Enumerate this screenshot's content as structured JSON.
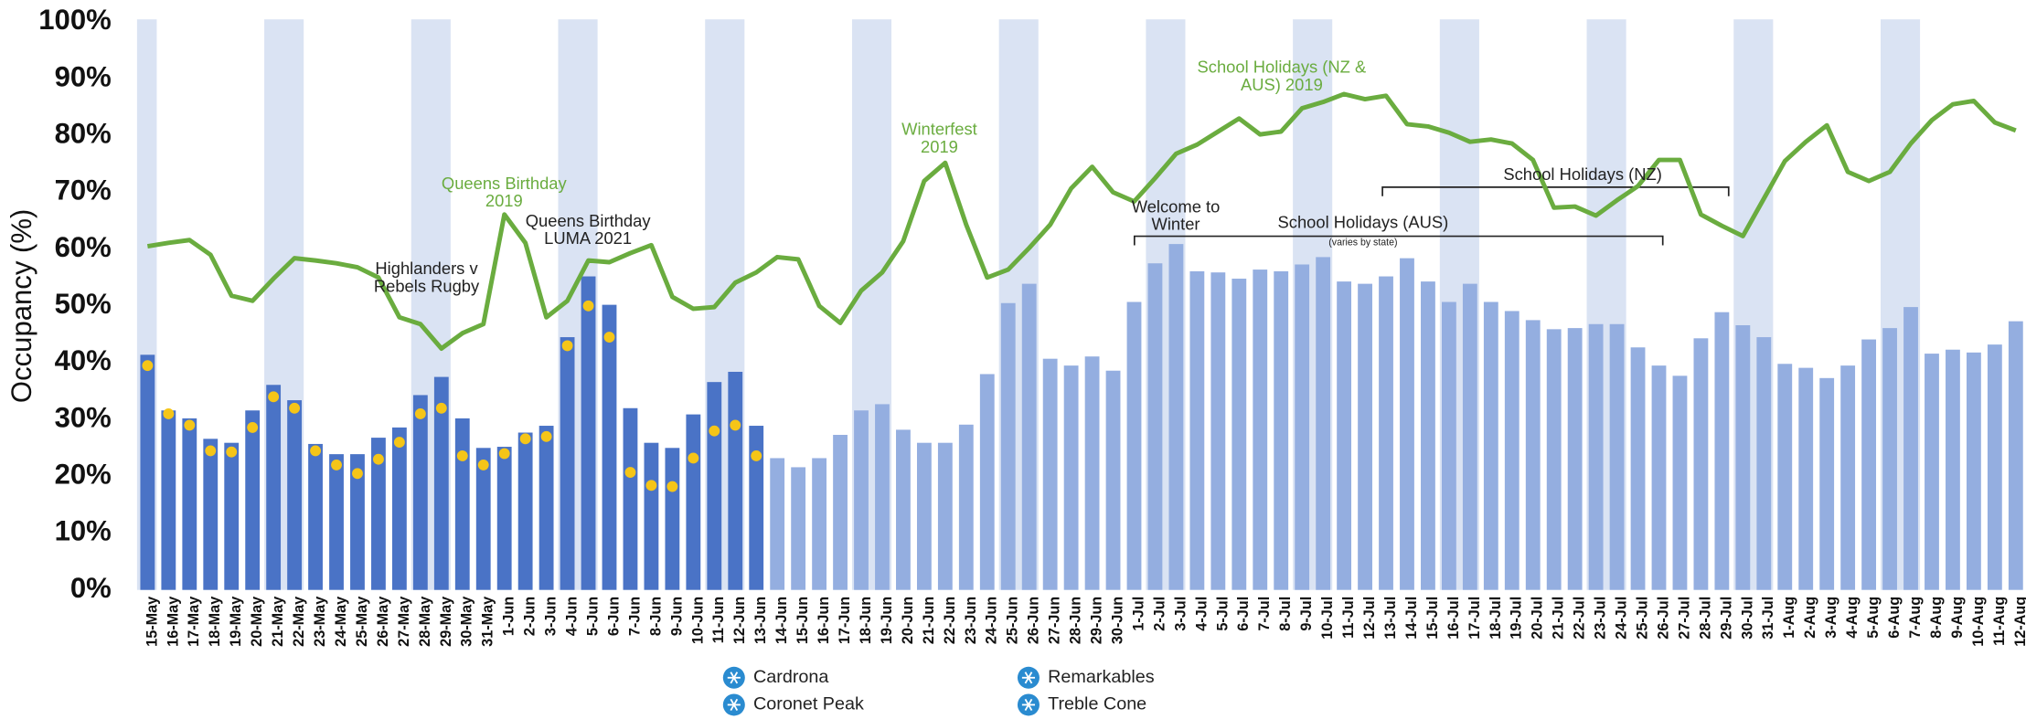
{
  "chart_data": {
    "type": "bar",
    "y_label": "Occupancy (%)",
    "categories": [
      "15-May",
      "16-May",
      "17-May",
      "18-May",
      "19-May",
      "20-May",
      "21-May",
      "22-May",
      "23-May",
      "24-May",
      "25-May",
      "26-May",
      "27-May",
      "28-May",
      "29-May",
      "30-May",
      "31-May",
      "1-Jun",
      "2-Jun",
      "3-Jun",
      "4-Jun",
      "5-Jun",
      "6-Jun",
      "7-Jun",
      "8-Jun",
      "9-Jun",
      "10-Jun",
      "11-Jun",
      "12-Jun",
      "13-Jun",
      "14-Jun",
      "15-Jun",
      "16-Jun",
      "17-Jun",
      "18-Jun",
      "19-Jun",
      "20-Jun",
      "21-Jun",
      "22-Jun",
      "23-Jun",
      "24-Jun",
      "25-Jun",
      "26-Jun",
      "27-Jun",
      "28-Jun",
      "29-Jun",
      "30-Jun",
      "1-Jul",
      "2-Jul",
      "3-Jul",
      "4-Jul",
      "5-Jul",
      "6-Jul",
      "7-Jul",
      "8-Jul",
      "9-Jul",
      "10-Jul",
      "11-Jul",
      "12-Jul",
      "13-Jul",
      "14-Jul",
      "15-Jul",
      "16-Jul",
      "17-Jul",
      "18-Jul",
      "19-Jul",
      "20-Jul",
      "21-Jul",
      "22-Jul",
      "23-Jul",
      "24-Jul",
      "25-Jul",
      "26-Jul",
      "27-Jul",
      "28-Jul",
      "29-Jul",
      "30-Jul",
      "31-Jul",
      "1-Aug",
      "2-Aug",
      "3-Aug",
      "4-Aug",
      "5-Aug",
      "6-Aug",
      "7-Aug",
      "8-Aug",
      "9-Aug",
      "10-Aug",
      "11-Aug",
      "12-Aug"
    ],
    "series": [
      {
        "type": "bar",
        "color": "#4a73c6",
        "values": [
          41.4,
          31.6,
          30.2,
          26.6,
          25.9,
          31.6,
          36.1,
          33.4,
          25.7,
          23.9,
          23.9,
          26.8,
          28.6,
          34.3,
          37.5,
          30.2,
          25,
          25.2,
          27.7,
          28.9,
          44.5,
          55.2,
          50.2,
          32,
          25.9,
          25,
          30.9,
          36.6,
          38.4,
          28.9,
          null,
          null,
          null,
          null,
          null,
          null,
          null,
          null,
          null,
          null,
          null,
          null,
          null,
          null,
          null,
          null,
          null,
          null,
          null,
          null,
          null,
          null,
          null,
          null,
          null,
          null,
          null,
          null,
          null,
          null,
          null,
          null,
          null,
          null,
          null,
          null,
          null,
          null,
          null,
          null,
          null,
          null,
          null,
          null,
          null,
          null,
          null,
          null,
          null,
          null,
          null,
          null,
          null,
          null,
          null,
          null,
          null,
          null,
          null,
          null
        ]
      },
      {
        "type": "bar",
        "color": "#94aee0",
        "values": [
          null,
          null,
          null,
          null,
          null,
          null,
          null,
          null,
          null,
          null,
          null,
          null,
          null,
          null,
          null,
          null,
          null,
          null,
          null,
          null,
          null,
          null,
          null,
          null,
          null,
          null,
          null,
          null,
          null,
          null,
          23.2,
          21.6,
          23.2,
          27.3,
          31.6,
          32.7,
          28.2,
          25.9,
          25.9,
          29.1,
          38,
          50.5,
          53.9,
          40.7,
          39.5,
          41.1,
          38.6,
          50.7,
          57.5,
          60.9,
          56.1,
          55.9,
          54.8,
          56.4,
          56.1,
          57.3,
          58.6,
          54.3,
          53.9,
          55.2,
          58.4,
          54.3,
          50.7,
          53.9,
          50.7,
          49.1,
          47.5,
          45.9,
          46.1,
          46.8,
          46.8,
          42.7,
          39.5,
          37.7,
          44.3,
          48.9,
          46.6,
          44.5,
          39.8,
          39.1,
          37.3,
          39.5,
          44.1,
          46.1,
          49.8,
          41.6,
          42.3,
          41.8,
          43.2,
          47.3
        ]
      },
      {
        "type": "scatter",
        "color": "#f5c518",
        "values": [
          39.5,
          31,
          29,
          24.5,
          24.3,
          28.6,
          34,
          32,
          24.5,
          22,
          20.5,
          23,
          26,
          31,
          32,
          23.6,
          22,
          24,
          26.6,
          27,
          43,
          50,
          44.5,
          20.7,
          18.4,
          18.2,
          23.2,
          28,
          29,
          23.6,
          null,
          null,
          null,
          null,
          null,
          null,
          null,
          null,
          null,
          null,
          null,
          null,
          null,
          null,
          null,
          null,
          null,
          null,
          null,
          null,
          null,
          null,
          null,
          null,
          null,
          null,
          null,
          null,
          null,
          null,
          null,
          null,
          null,
          null,
          null,
          null,
          null,
          null,
          null,
          null,
          null,
          null,
          null,
          null,
          null,
          null,
          null,
          null,
          null,
          null,
          null,
          null,
          null,
          null,
          null,
          null,
          null,
          null,
          null,
          null
        ]
      },
      {
        "type": "line",
        "color": "#6aac3f",
        "values": [
          60.5,
          61.1,
          61.6,
          59,
          51.8,
          50.9,
          54.8,
          58.4,
          58,
          57.5,
          56.8,
          55,
          48,
          46.8,
          42.5,
          45.2,
          46.8,
          66.1,
          61.1,
          48,
          50.9,
          58,
          57.7,
          59.3,
          60.7,
          51.6,
          49.5,
          49.8,
          54.1,
          55.9,
          58.6,
          58.2,
          50,
          47,
          52.7,
          55.9,
          61.4,
          72,
          75.2,
          64.3,
          55,
          56.4,
          60.2,
          64.3,
          70.7,
          74.5,
          70,
          68.4,
          72.5,
          76.8,
          78.4,
          80.7,
          83,
          80.2,
          80.7,
          84.8,
          85.9,
          87.3,
          86.4,
          87,
          82,
          81.6,
          80.5,
          78.9,
          79.3,
          78.6,
          75.7,
          67.3,
          67.5,
          65.9,
          68.6,
          71.1,
          75.7,
          75.7,
          66.1,
          64.1,
          62.3,
          68.9,
          75.5,
          78.9,
          81.8,
          73.6,
          72,
          73.6,
          78.6,
          82.7,
          85.5,
          86.1,
          82.3,
          80.9
        ]
      }
    ],
    "ylim": [
      0,
      100
    ],
    "yticks": [
      {
        "value": 0,
        "label": "0%"
      },
      {
        "value": 10,
        "label": "10%"
      },
      {
        "value": 20,
        "label": "20%"
      },
      {
        "value": 30,
        "label": "30%"
      },
      {
        "value": 40,
        "label": "40%"
      },
      {
        "value": 50,
        "label": "50%"
      },
      {
        "value": 60,
        "label": "60%"
      },
      {
        "value": 70,
        "label": "70%"
      },
      {
        "value": 80,
        "label": "80%"
      },
      {
        "value": 90,
        "label": "90%"
      },
      {
        "value": 100,
        "label": "100%"
      }
    ],
    "grid": false,
    "annotations": [
      {
        "lines": [
          "Highlanders v",
          "Rebels Rugby"
        ],
        "color": "#222222"
      },
      {
        "lines": [
          "Queens Birthday",
          "2019"
        ],
        "color": "#6aac3f"
      },
      {
        "lines": [
          "Queens Birthday",
          "LUMA 2021"
        ],
        "color": "#222222"
      },
      {
        "lines": [
          "Winterfest",
          "2019"
        ],
        "color": "#6aac3f"
      },
      {
        "lines": [
          "School Holidays (NZ &",
          "AUS)  2019"
        ],
        "color": "#6aac3f"
      },
      {
        "lines": [
          "Welcome to",
          "Winter"
        ],
        "color": "#222222"
      },
      {
        "lines": [
          "School Holidays (NZ)"
        ],
        "color": "#222222"
      },
      {
        "lines": [
          "School Holidays (AUS)"
        ],
        "color": "#222222"
      },
      {
        "lines": [
          "(varies by state)"
        ],
        "color": "#222222"
      }
    ],
    "legend": [
      "Cardrona",
      "Coronet Peak",
      "Remarkables",
      "Treble Cone"
    ]
  }
}
